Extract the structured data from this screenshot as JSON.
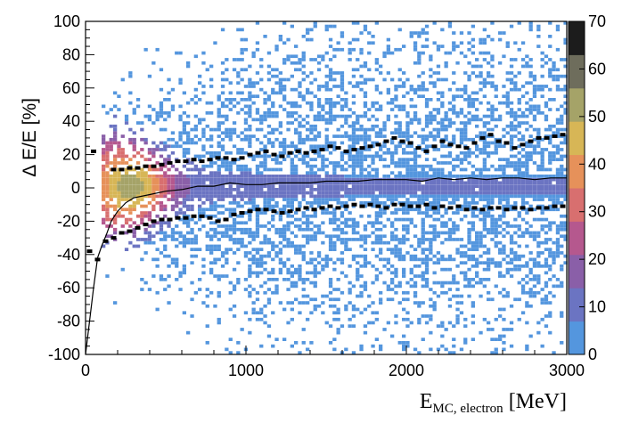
{
  "chart_data": {
    "type": "heatmap",
    "title": "",
    "xlabel_main": "E",
    "xlabel_sub": "MC, electron",
    "xlabel_unit": " [MeV]",
    "ylabel": "Δ E/E [%]",
    "xlim": [
      0,
      3000
    ],
    "ylim": [
      -100,
      100
    ],
    "x_ticks": [
      0,
      1000,
      2000,
      3000
    ],
    "y_ticks": [
      -100,
      -80,
      -60,
      -40,
      -20,
      0,
      20,
      40,
      60,
      80,
      100
    ],
    "zlim": [
      0,
      70
    ],
    "z_ticks": [
      0,
      10,
      20,
      30,
      40,
      50,
      60,
      70
    ],
    "colormap": [
      "#5496de",
      "#6b74c2",
      "#8a5fa8",
      "#b5588e",
      "#d86f6f",
      "#e6915a",
      "#d7b656",
      "#a5a368",
      "#6e6d5c",
      "#1c1c1c"
    ],
    "grid": false,
    "series": [
      {
        "name": "",
        "style": "line",
        "x": [
          0,
          25,
          50,
          75,
          100,
          130,
          160,
          200,
          250,
          300,
          400,
          500,
          600,
          700,
          800,
          900,
          1000,
          1100,
          1200,
          1300,
          1400,
          1500,
          1600,
          1700,
          1800,
          1900,
          2000,
          2100,
          2200,
          2300,
          2400,
          2500,
          2600,
          2700,
          2800,
          2900,
          3000
        ],
        "y": [
          -100,
          -80,
          -60,
          -42,
          -35,
          -28,
          -20,
          -14,
          -9,
          -6,
          -4,
          -2,
          -1,
          1,
          1,
          3,
          2,
          2,
          3,
          3,
          3,
          4,
          4,
          4,
          5,
          5,
          5,
          4,
          6,
          5,
          6,
          5,
          6,
          6,
          5,
          6,
          6
        ]
      },
      {
        "name": "",
        "style": "markers",
        "x": [
          50,
          175,
          225,
          275,
          325,
          375,
          425,
          475,
          525,
          575,
          625,
          675,
          725,
          775,
          825,
          875,
          925,
          975,
          1025,
          1075,
          1125,
          1175,
          1225,
          1275,
          1325,
          1375,
          1425,
          1475,
          1525,
          1575,
          1625,
          1675,
          1725,
          1775,
          1825,
          1875,
          1925,
          1975,
          2025,
          2075,
          2125,
          2175,
          2225,
          2275,
          2325,
          2375,
          2425,
          2475,
          2525,
          2575,
          2625,
          2675,
          2725,
          2775,
          2825,
          2875,
          2925,
          2975
        ],
        "y": [
          22,
          11,
          11,
          12,
          12,
          13,
          13,
          14,
          15,
          16,
          16,
          17,
          16,
          17,
          18,
          18,
          17,
          18,
          20,
          21,
          22,
          20,
          19,
          21,
          22,
          21,
          22,
          23,
          25,
          24,
          22,
          23,
          24,
          25,
          26,
          28,
          30,
          28,
          27,
          24,
          22,
          25,
          28,
          26,
          25,
          24,
          27,
          30,
          32,
          28,
          27,
          24,
          26,
          28,
          30,
          30,
          31,
          32
        ]
      },
      {
        "name": "",
        "style": "markers",
        "x": [
          25,
          75,
          125,
          175,
          225,
          275,
          325,
          375,
          425,
          475,
          525,
          575,
          625,
          675,
          725,
          775,
          825,
          875,
          925,
          975,
          1025,
          1075,
          1125,
          1175,
          1225,
          1275,
          1325,
          1375,
          1425,
          1475,
          1525,
          1575,
          1625,
          1675,
          1725,
          1775,
          1825,
          1875,
          1925,
          1975,
          2025,
          2075,
          2125,
          2175,
          2225,
          2275,
          2325,
          2375,
          2425,
          2475,
          2525,
          2575,
          2625,
          2675,
          2725,
          2775,
          2825,
          2875,
          2925,
          2975
        ],
        "y": [
          -38,
          -43,
          -32,
          -30,
          -27,
          -26,
          -24,
          -22,
          -20,
          -19,
          -19,
          -18,
          -18,
          -17,
          -17,
          -18,
          -20,
          -19,
          -16,
          -15,
          -14,
          -13,
          -13,
          -14,
          -15,
          -14,
          -13,
          -12,
          -13,
          -12,
          -11,
          -12,
          -11,
          -10,
          -11,
          -10,
          -11,
          -12,
          -10,
          -10,
          -11,
          -11,
          -10,
          -12,
          -11,
          -12,
          -11,
          -13,
          -12,
          -13,
          -12,
          -12,
          -13,
          -12,
          -12,
          -13,
          -12,
          -12,
          -11,
          -11
        ]
      }
    ]
  }
}
